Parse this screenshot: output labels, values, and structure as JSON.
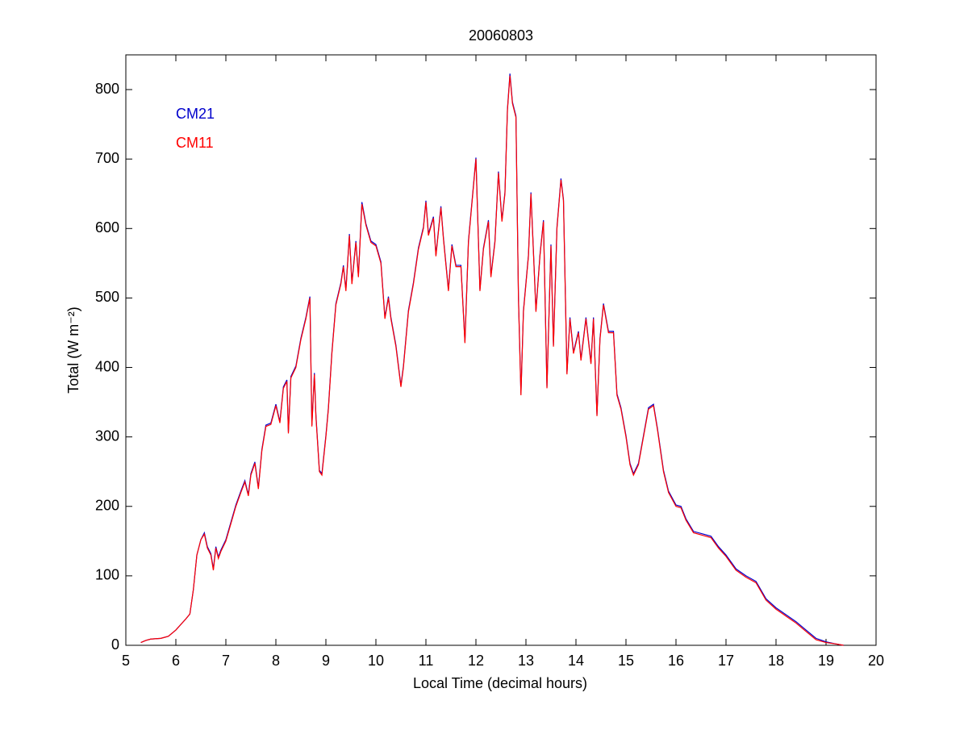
{
  "chart_data": {
    "type": "line",
    "title": "20060803",
    "xlabel": "Local Time (decimal hours)",
    "ylabel": "Total (W m⁻²)",
    "xlim": [
      5,
      20
    ],
    "xticks": [
      5,
      6,
      7,
      8,
      9,
      10,
      11,
      12,
      13,
      14,
      15,
      16,
      17,
      18,
      19,
      20
    ],
    "ylim": [
      0,
      850
    ],
    "yticks": [
      0,
      100,
      200,
      300,
      400,
      500,
      600,
      700,
      800
    ],
    "grid": false,
    "legend": "upper left",
    "x": [
      5.3,
      5.4,
      5.5,
      5.7,
      5.85,
      6.0,
      6.1,
      6.2,
      6.28,
      6.35,
      6.42,
      6.5,
      6.57,
      6.63,
      6.7,
      6.75,
      6.8,
      6.85,
      6.9,
      7.0,
      7.1,
      7.2,
      7.3,
      7.38,
      7.45,
      7.5,
      7.58,
      7.65,
      7.72,
      7.8,
      7.9,
      8.0,
      8.08,
      8.15,
      8.22,
      8.25,
      8.3,
      8.4,
      8.5,
      8.6,
      8.68,
      8.72,
      8.77,
      8.8,
      8.87,
      8.92,
      9.0,
      9.05,
      9.12,
      9.2,
      9.3,
      9.35,
      9.4,
      9.47,
      9.52,
      9.6,
      9.65,
      9.72,
      9.8,
      9.9,
      10.0,
      10.1,
      10.18,
      10.25,
      10.3,
      10.4,
      10.5,
      10.55,
      10.65,
      10.75,
      10.85,
      10.95,
      11.0,
      11.05,
      11.15,
      11.2,
      11.3,
      11.35,
      11.45,
      11.52,
      11.6,
      11.7,
      11.78,
      11.85,
      11.95,
      12.0,
      12.08,
      12.15,
      12.25,
      12.3,
      12.38,
      12.45,
      12.52,
      12.58,
      12.63,
      12.68,
      12.73,
      12.8,
      12.85,
      12.9,
      12.95,
      13.05,
      13.1,
      13.2,
      13.28,
      13.35,
      13.42,
      13.5,
      13.55,
      13.62,
      13.7,
      13.75,
      13.82,
      13.88,
      13.95,
      14.05,
      14.1,
      14.2,
      14.3,
      14.35,
      14.42,
      14.48,
      14.55,
      14.65,
      14.75,
      14.82,
      14.9,
      15.0,
      15.08,
      15.15,
      15.25,
      15.35,
      15.45,
      15.55,
      15.63,
      15.75,
      15.85,
      16.0,
      16.1,
      16.2,
      16.35,
      16.55,
      16.7,
      16.85,
      17.0,
      17.2,
      17.4,
      17.6,
      17.8,
      18.0,
      18.2,
      18.4,
      18.6,
      18.8,
      19.0,
      19.2,
      19.35
    ],
    "series": [
      {
        "name": "CM21",
        "color": "#0000cc",
        "values": [
          4,
          7,
          9,
          10,
          13,
          22,
          30,
          38,
          45,
          80,
          130,
          152,
          162,
          142,
          132,
          110,
          142,
          127,
          137,
          152,
          177,
          202,
          222,
          237,
          217,
          247,
          264,
          227,
          282,
          317,
          320,
          347,
          322,
          372,
          382,
          307,
          387,
          402,
          442,
          472,
          502,
          317,
          392,
          332,
          252,
          247,
          302,
          342,
          422,
          492,
          522,
          547,
          512,
          592,
          522,
          582,
          532,
          638,
          607,
          582,
          577,
          552,
          472,
          502,
          472,
          432,
          374,
          402,
          482,
          522,
          572,
          602,
          640,
          592,
          617,
          562,
          632,
          587,
          512,
          577,
          547,
          547,
          437,
          582,
          662,
          702,
          512,
          572,
          612,
          532,
          582,
          682,
          612,
          652,
          772,
          823,
          782,
          762,
          502,
          362,
          482,
          562,
          652,
          482,
          562,
          612,
          372,
          577,
          432,
          602,
          672,
          642,
          392,
          472,
          422,
          452,
          412,
          472,
          407,
          472,
          332,
          442,
          492,
          452,
          452,
          362,
          342,
          302,
          262,
          247,
          262,
          302,
          342,
          347,
          312,
          252,
          222,
          202,
          200,
          182,
          164,
          160,
          157,
          142,
          130,
          110,
          100,
          92,
          67,
          54,
          44,
          34,
          22,
          10,
          5,
          2,
          0
        ]
      },
      {
        "name": "CM11",
        "color": "#ff0000",
        "values": [
          4,
          7,
          9,
          10,
          13,
          22,
          30,
          38,
          45,
          80,
          130,
          152,
          160,
          140,
          130,
          108,
          140,
          125,
          135,
          150,
          175,
          200,
          220,
          235,
          215,
          245,
          262,
          225,
          280,
          315,
          318,
          345,
          320,
          370,
          380,
          305,
          385,
          400,
          440,
          470,
          500,
          315,
          390,
          330,
          250,
          245,
          300,
          340,
          420,
          490,
          520,
          545,
          510,
          590,
          520,
          580,
          530,
          635,
          605,
          580,
          575,
          550,
          470,
          500,
          470,
          430,
          372,
          400,
          480,
          520,
          570,
          600,
          638,
          590,
          615,
          560,
          630,
          585,
          510,
          575,
          545,
          545,
          435,
          580,
          660,
          700,
          510,
          570,
          610,
          530,
          580,
          680,
          610,
          650,
          770,
          820,
          780,
          760,
          500,
          360,
          480,
          560,
          650,
          480,
          560,
          610,
          370,
          575,
          430,
          600,
          670,
          640,
          390,
          470,
          420,
          450,
          410,
          470,
          405,
          470,
          330,
          440,
          490,
          450,
          450,
          360,
          340,
          300,
          260,
          245,
          260,
          300,
          340,
          345,
          310,
          250,
          220,
          200,
          198,
          180,
          162,
          158,
          155,
          140,
          128,
          108,
          98,
          90,
          65,
          52,
          42,
          32,
          20,
          8,
          4,
          2,
          0
        ]
      }
    ]
  }
}
